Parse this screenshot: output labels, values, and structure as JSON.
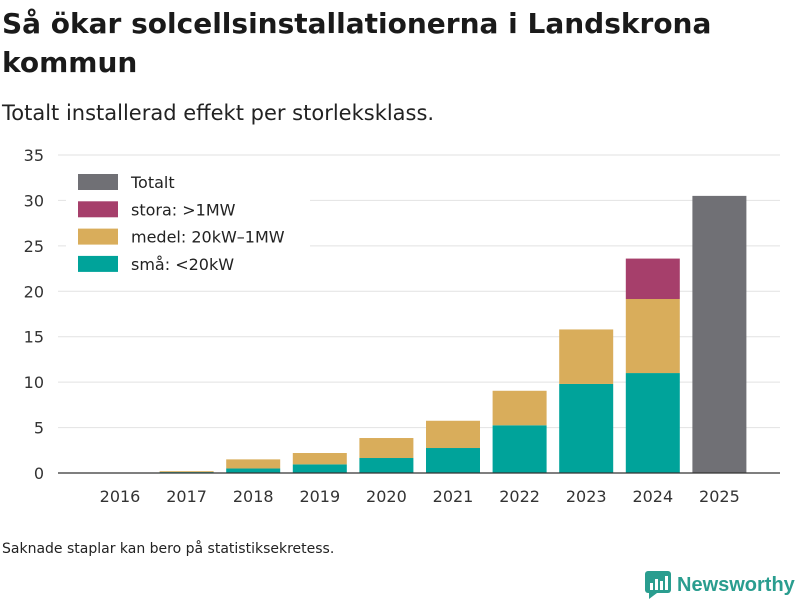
{
  "title": "Så ökar solcellsinstallationerna i Landskrona kommun",
  "subtitle": "Totalt installerad effekt per storleksklass.",
  "footnote": "Saknade staplar kan bero på statistiksekretess.",
  "brand": {
    "name": "Newsworthy",
    "icon": "newsworthy-logo-icon",
    "color": "#2a9d8f"
  },
  "chart_data": {
    "type": "bar",
    "stacked": true,
    "categories": [
      "2016",
      "2017",
      "2018",
      "2019",
      "2020",
      "2021",
      "2022",
      "2023",
      "2024",
      "2025"
    ],
    "series": [
      {
        "name": "små: <20kW",
        "key": "sma",
        "color": "#00a39a",
        "values": [
          0.05,
          0.1,
          0.5,
          0.95,
          1.65,
          2.75,
          5.25,
          9.8,
          11.0,
          null
        ]
      },
      {
        "name": "medel: 20kW–1MW",
        "key": "medel",
        "color": "#d9ad5b",
        "values": [
          0,
          0.1,
          1.0,
          1.25,
          2.2,
          3.0,
          3.8,
          6.0,
          8.15,
          null
        ]
      },
      {
        "name": "stora: >1MW",
        "key": "stora",
        "color": "#a63f6b",
        "values": [
          null,
          null,
          null,
          null,
          null,
          null,
          null,
          null,
          4.45,
          null
        ]
      },
      {
        "name": "Totalt",
        "key": "totalt",
        "color": "#707075",
        "values": [
          null,
          null,
          null,
          null,
          null,
          null,
          null,
          null,
          null,
          30.5
        ]
      }
    ],
    "legend_order": [
      "totalt",
      "stora",
      "medel",
      "sma"
    ],
    "yticks": [
      0,
      5,
      10,
      15,
      20,
      25,
      30,
      35
    ],
    "ylim": [
      0,
      35
    ],
    "xlabel": "",
    "ylabel": "",
    "grid": true,
    "legend_position": "top-left"
  }
}
